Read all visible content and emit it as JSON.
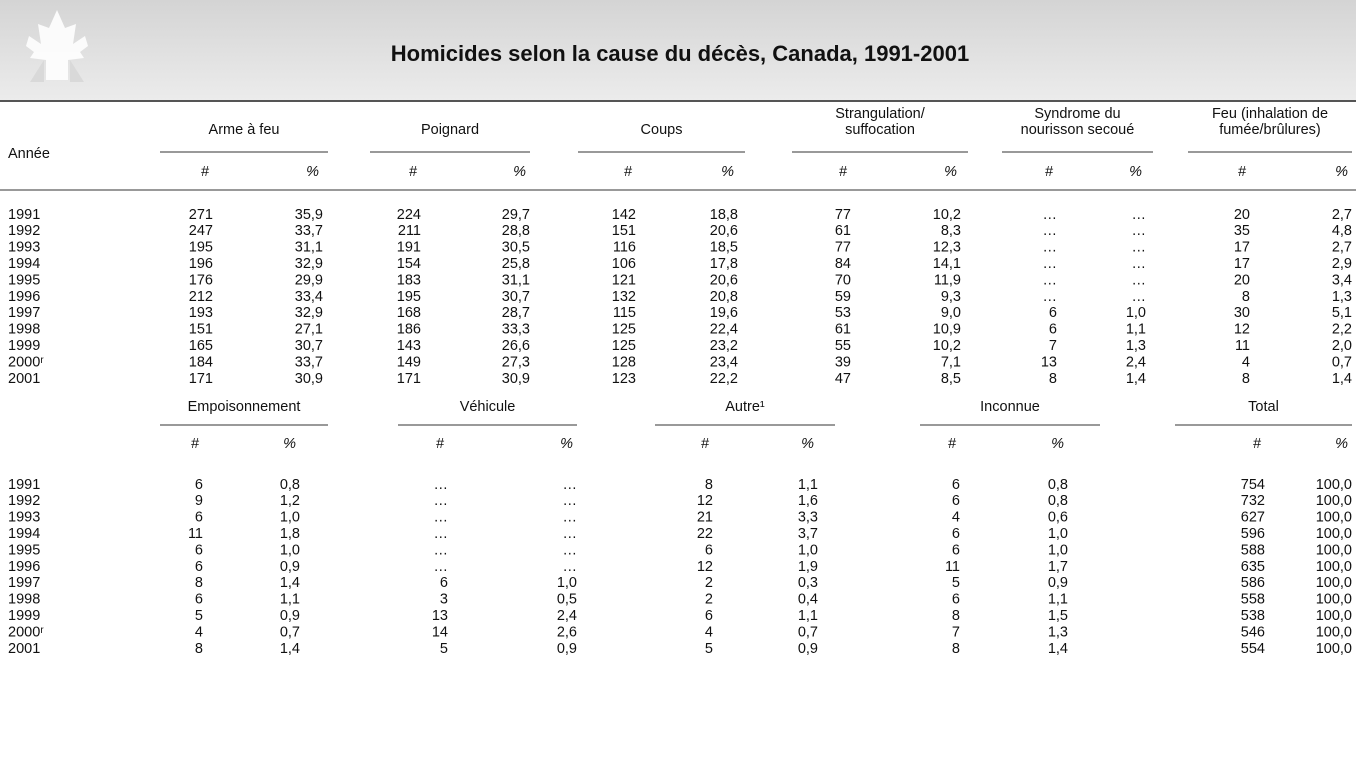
{
  "header": {
    "title": "Homicides selon la cause du décès, Canada, 1991-2001"
  },
  "table1": {
    "row_header": "Année",
    "groups": [
      [
        "Arme à feu"
      ],
      [
        "Poignard"
      ],
      [
        "Coups"
      ],
      [
        "Strangulation/",
        "suffocation"
      ],
      [
        "Syndrome du",
        "nourisson secoué"
      ],
      [
        "Feu (inhalation de",
        "fumée/brûlures)"
      ]
    ],
    "subheaders": [
      "#",
      "%"
    ],
    "rows": [
      [
        "1991",
        "271",
        "35,9",
        "224",
        "29,7",
        "142",
        "18,8",
        "77",
        "10,2",
        "…",
        "…",
        "20",
        "2,7"
      ],
      [
        "1992",
        "247",
        "33,7",
        "211",
        "28,8",
        "151",
        "20,6",
        "61",
        "8,3",
        "…",
        "…",
        "35",
        "4,8"
      ],
      [
        "1993",
        "195",
        "31,1",
        "191",
        "30,5",
        "116",
        "18,5",
        "77",
        "12,3",
        "…",
        "…",
        "17",
        "2,7"
      ],
      [
        "1994",
        "196",
        "32,9",
        "154",
        "25,8",
        "106",
        "17,8",
        "84",
        "14,1",
        "…",
        "…",
        "17",
        "2,9"
      ],
      [
        "1995",
        "176",
        "29,9",
        "183",
        "31,1",
        "121",
        "20,6",
        "70",
        "11,9",
        "…",
        "…",
        "20",
        "3,4"
      ],
      [
        "1996",
        "212",
        "33,4",
        "195",
        "30,7",
        "132",
        "20,8",
        "59",
        "9,3",
        "…",
        "…",
        "8",
        "1,3"
      ],
      [
        "1997",
        "193",
        "32,9",
        "168",
        "28,7",
        "115",
        "19,6",
        "53",
        "9,0",
        "6",
        "1,0",
        "30",
        "5,1"
      ],
      [
        "1998",
        "151",
        "27,1",
        "186",
        "33,3",
        "125",
        "22,4",
        "61",
        "10,9",
        "6",
        "1,1",
        "12",
        "2,2"
      ],
      [
        "1999",
        "165",
        "30,7",
        "143",
        "26,6",
        "125",
        "23,2",
        "55",
        "10,2",
        "7",
        "1,3",
        "11",
        "2,0"
      ],
      [
        "2000ʳ",
        "184",
        "33,7",
        "149",
        "27,3",
        "128",
        "23,4",
        "39",
        "7,1",
        "13",
        "2,4",
        "4",
        "0,7"
      ],
      [
        "2001",
        "171",
        "30,9",
        "171",
        "30,9",
        "123",
        "22,2",
        "47",
        "8,5",
        "8",
        "1,4",
        "8",
        "1,4"
      ]
    ]
  },
  "table2": {
    "groups": [
      [
        "Empoisonnement"
      ],
      [
        "Véhicule"
      ],
      [
        "Autre¹"
      ],
      [
        "Inconnue"
      ],
      [
        "Total"
      ]
    ],
    "subheaders": [
      "#",
      "%"
    ],
    "rows": [
      [
        "1991",
        "6",
        "0,8",
        "…",
        "…",
        "8",
        "1,1",
        "6",
        "0,8",
        "754",
        "100,0"
      ],
      [
        "1992",
        "9",
        "1,2",
        "…",
        "…",
        "12",
        "1,6",
        "6",
        "0,8",
        "732",
        "100,0"
      ],
      [
        "1993",
        "6",
        "1,0",
        "…",
        "…",
        "21",
        "3,3",
        "4",
        "0,6",
        "627",
        "100,0"
      ],
      [
        "1994",
        "11",
        "1,8",
        "…",
        "…",
        "22",
        "3,7",
        "6",
        "1,0",
        "596",
        "100,0"
      ],
      [
        "1995",
        "6",
        "1,0",
        "…",
        "…",
        "6",
        "1,0",
        "6",
        "1,0",
        "588",
        "100,0"
      ],
      [
        "1996",
        "6",
        "0,9",
        "…",
        "…",
        "12",
        "1,9",
        "11",
        "1,7",
        "635",
        "100,0"
      ],
      [
        "1997",
        "8",
        "1,4",
        "6",
        "1,0",
        "2",
        "0,3",
        "5",
        "0,9",
        "586",
        "100,0"
      ],
      [
        "1998",
        "6",
        "1,1",
        "3",
        "0,5",
        "2",
        "0,4",
        "6",
        "1,1",
        "558",
        "100,0"
      ],
      [
        "1999",
        "5",
        "0,9",
        "13",
        "2,4",
        "6",
        "1,1",
        "8",
        "1,5",
        "538",
        "100,0"
      ],
      [
        "2000ʳ",
        "4",
        "0,7",
        "14",
        "2,6",
        "4",
        "0,7",
        "7",
        "1,3",
        "546",
        "100,0"
      ],
      [
        "2001",
        "8",
        "1,4",
        "5",
        "0,9",
        "5",
        "0,9",
        "8",
        "1,4",
        "554",
        "100,0"
      ]
    ]
  }
}
